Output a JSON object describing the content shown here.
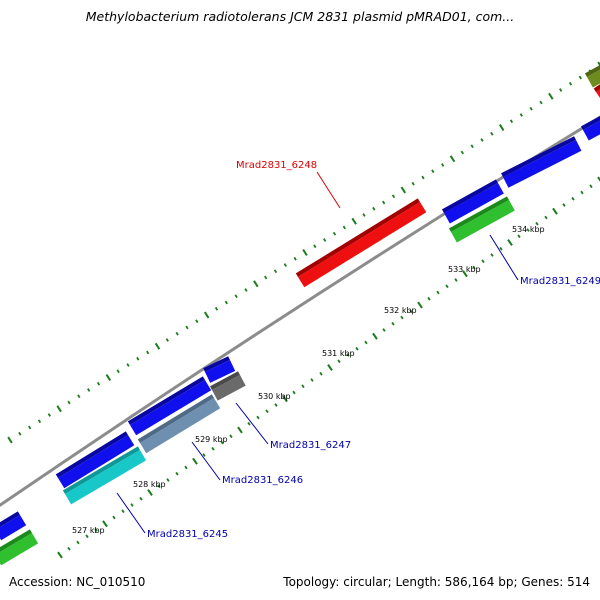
{
  "title": "Methylobacterium radiotolerans JCM 2831 plasmid pMRAD01, com...",
  "footer": {
    "accession": "Accession: NC_010510",
    "summary": "Topology: circular; Length: 586,164 bp; Genes: 514"
  },
  "colors": {
    "backbone": "#8c8c8c",
    "tick_major": "#1e7d1e",
    "tick_minor": "#1e7d1e",
    "cds_blue": "#1010ee",
    "cds_green": "#2fbf2f",
    "cds_cyan": "#18c8c8",
    "cds_red": "#ee1010",
    "cds_gray": "#6a6a6a",
    "cds_steel": "#6f8fb0",
    "cds_olive": "#6e8c1e",
    "label_red": "#dd0000",
    "label_blue": "#0000aa"
  },
  "kbp_ticks": [
    "527 kbp",
    "528 kbp",
    "529 kbp",
    "530 kbp",
    "531 kbp",
    "532 kbp",
    "533 kbp",
    "534 kbp"
  ],
  "genes": [
    {
      "label": "Mrad2831_6248",
      "color": "label_red"
    },
    {
      "label": "Mrad2831_6249",
      "color": "label_blue"
    },
    {
      "label": "Mrad2831_6247",
      "color": "label_blue"
    },
    {
      "label": "Mrad2831_6246",
      "color": "label_blue"
    },
    {
      "label": "Mrad2831_6245",
      "color": "label_blue"
    }
  ]
}
